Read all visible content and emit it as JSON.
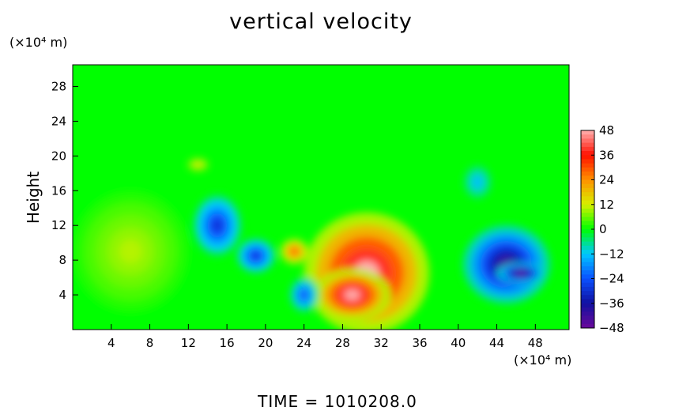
{
  "chart_data": {
    "type": "heatmap",
    "title": "vertical velocity",
    "ylabel": "Height",
    "x_units": "(×10⁴ m)",
    "y_units": "(×10⁴ m)",
    "footer": "TIME  =  1010208.0",
    "xlim": [
      0,
      51.5
    ],
    "ylim": [
      0,
      30.5
    ],
    "x_ticks": [
      4,
      8,
      12,
      16,
      20,
      24,
      28,
      32,
      36,
      40,
      44,
      48
    ],
    "y_ticks": [
      4,
      8,
      12,
      16,
      20,
      24,
      28
    ],
    "colorbar": {
      "min": -48,
      "max": 48,
      "ticks": [
        48,
        36,
        24,
        12,
        0,
        -12,
        -24,
        -36,
        -48
      ],
      "colors": [
        "#6a0a9a",
        "#1010a0",
        "#0a50ff",
        "#00c8ff",
        "#00ff00",
        "#d8f000",
        "#ff9000",
        "#ff1000",
        "#ffb0b0"
      ]
    },
    "background_value": 0,
    "features": [
      {
        "kind": "updraft",
        "x": 30.5,
        "y": 6.5,
        "rx": 6.5,
        "ry": 7.0,
        "peak": 48
      },
      {
        "kind": "updraft",
        "x": 29.0,
        "y": 4.0,
        "rx": 4.0,
        "ry": 3.0,
        "peak": 48
      },
      {
        "kind": "updraft",
        "x": 6.0,
        "y": 9.0,
        "rx": 6.0,
        "ry": 7.0,
        "peak": 10
      },
      {
        "kind": "updraft",
        "x": 13.0,
        "y": 19.0,
        "rx": 1.2,
        "ry": 0.8,
        "peak": 15
      },
      {
        "kind": "updraft",
        "x": 23.0,
        "y": 9.0,
        "rx": 1.5,
        "ry": 1.5,
        "peak": 30
      },
      {
        "kind": "downdraft",
        "x": 45.0,
        "y": 7.5,
        "rx": 4.5,
        "ry": 4.5,
        "peak": -42
      },
      {
        "kind": "downdraft",
        "x": 46.5,
        "y": 6.5,
        "rx": 2.5,
        "ry": 1.2,
        "peak": -48
      },
      {
        "kind": "downdraft",
        "x": 15.0,
        "y": 12.0,
        "rx": 2.5,
        "ry": 3.5,
        "peak": -30
      },
      {
        "kind": "downdraft",
        "x": 19.0,
        "y": 8.5,
        "rx": 2.0,
        "ry": 2.0,
        "peak": -30
      },
      {
        "kind": "downdraft",
        "x": 24.0,
        "y": 4.0,
        "rx": 1.5,
        "ry": 2.0,
        "peak": -25
      },
      {
        "kind": "downdraft",
        "x": 42.0,
        "y": 17.0,
        "rx": 1.5,
        "ry": 2.0,
        "peak": -14
      }
    ]
  }
}
